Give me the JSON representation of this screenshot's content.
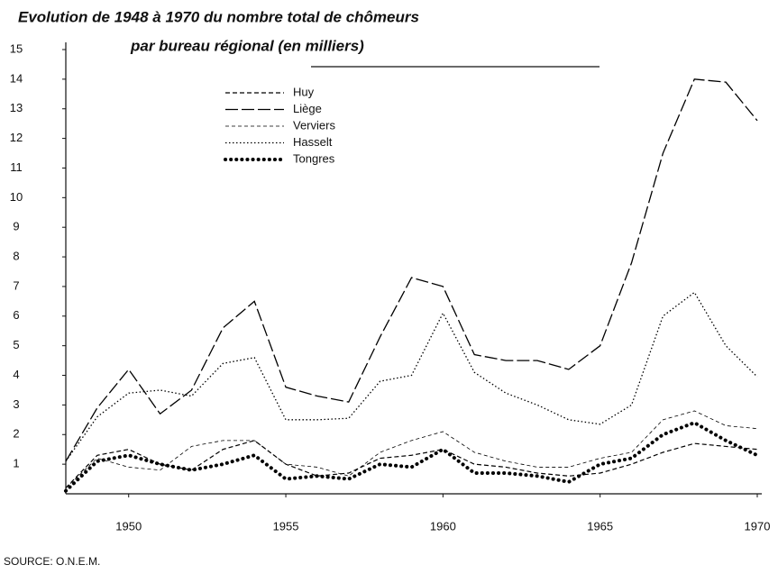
{
  "chart_data": {
    "type": "line",
    "title": "Evolution de 1948 à 1970 du nombre total de chômeurs",
    "subtitle": "par bureau régional (en milliers)",
    "source": "SOURCE: O.N.E.M.",
    "x": [
      1948,
      1949,
      1950,
      1951,
      1952,
      1953,
      1954,
      1955,
      1956,
      1957,
      1958,
      1959,
      1960,
      1961,
      1962,
      1963,
      1964,
      1965,
      1966,
      1967,
      1968,
      1969,
      1970
    ],
    "xlim": [
      1948,
      1970
    ],
    "xticks": [
      1950,
      1955,
      1960,
      1965,
      1970
    ],
    "ylim": [
      0,
      15
    ],
    "yticks": [
      1,
      2,
      3,
      4,
      5,
      6,
      7,
      8,
      9,
      10,
      11,
      12,
      13,
      14,
      15
    ],
    "grid": false,
    "legend": "top-left",
    "series": [
      {
        "name": "Huy",
        "color": "#000000",
        "style": "dashed",
        "values": [
          0.2,
          1.3,
          1.5,
          1.0,
          0.8,
          1.5,
          1.8,
          1.0,
          0.6,
          0.7,
          1.2,
          1.3,
          1.5,
          1.0,
          0.9,
          0.7,
          0.6,
          0.7,
          1.0,
          1.4,
          1.7,
          1.6,
          1.5
        ]
      },
      {
        "name": "Liège",
        "color": "#000000",
        "style": "dash-dot",
        "values": [
          1.1,
          2.9,
          4.2,
          2.7,
          3.5,
          5.6,
          6.5,
          3.6,
          3.3,
          3.1,
          5.3,
          7.3,
          7.0,
          4.7,
          4.5,
          4.5,
          4.2,
          5.0,
          7.8,
          11.5,
          14.0,
          13.9,
          12.6
        ]
      },
      {
        "name": "Verviers",
        "color": "#000000",
        "style": "thin-dashed",
        "values": [
          0.2,
          1.2,
          0.9,
          0.8,
          1.6,
          1.8,
          1.8,
          1.0,
          0.9,
          0.6,
          1.4,
          1.8,
          2.1,
          1.4,
          1.1,
          0.9,
          0.9,
          1.2,
          1.4,
          2.5,
          2.8,
          2.3,
          2.2
        ]
      },
      {
        "name": "Hasselt",
        "color": "#000000",
        "style": "dotted",
        "values": [
          1.1,
          2.6,
          3.4,
          3.5,
          3.3,
          4.4,
          4.6,
          2.5,
          2.5,
          2.55,
          3.8,
          4.0,
          6.1,
          4.1,
          3.4,
          3.0,
          2.5,
          2.35,
          3.0,
          6.0,
          6.8,
          5.0,
          3.95
        ]
      },
      {
        "name": "Tongres",
        "color": "#000000",
        "style": "heavy-dotted",
        "values": [
          0.1,
          1.1,
          1.3,
          1.0,
          0.8,
          1.0,
          1.3,
          0.5,
          0.6,
          0.5,
          1.0,
          0.9,
          1.5,
          0.7,
          0.7,
          0.6,
          0.4,
          1.0,
          1.2,
          2.0,
          2.4,
          1.8,
          1.3
        ]
      }
    ]
  }
}
